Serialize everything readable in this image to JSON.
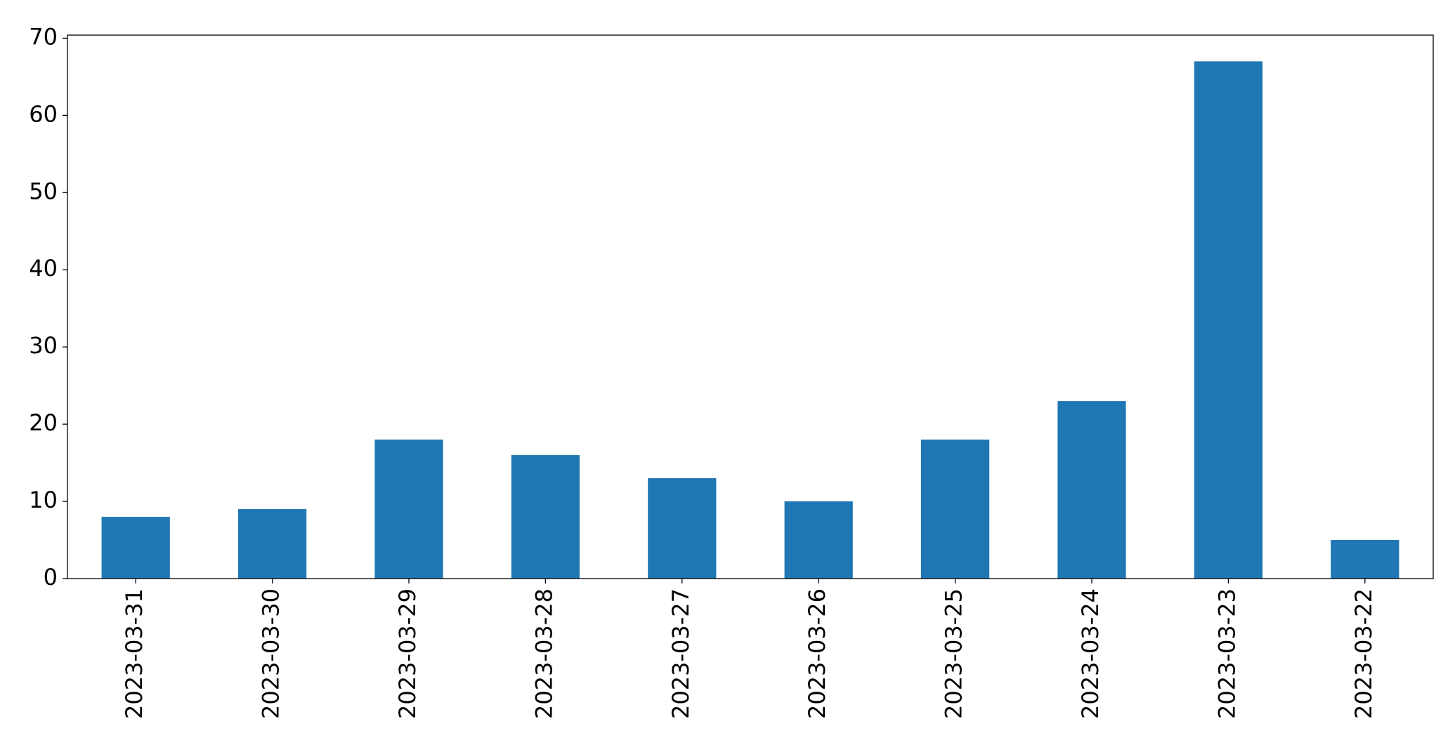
{
  "chart_data": {
    "type": "bar",
    "categories": [
      "2023-03-31",
      "2023-03-30",
      "2023-03-29",
      "2023-03-28",
      "2023-03-27",
      "2023-03-26",
      "2023-03-25",
      "2023-03-24",
      "2023-03-23",
      "2023-03-22"
    ],
    "values": [
      8,
      9,
      18,
      16,
      13,
      10,
      18,
      23,
      67,
      5
    ],
    "color": "#1f77b4",
    "ylim": [
      0,
      70.4
    ],
    "yticks": [
      0,
      10,
      20,
      30,
      40,
      50,
      60,
      70
    ],
    "grid": false
  }
}
